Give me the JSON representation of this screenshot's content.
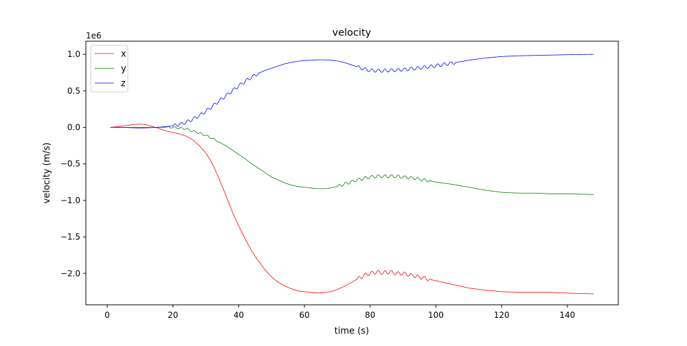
{
  "chart_data": {
    "type": "line",
    "title": "velocity",
    "xlabel": "time (s)",
    "ylabel": "velocity (m/s)",
    "offset_label": "1e6",
    "xlim": [
      -6.5,
      155.5
    ],
    "ylim": [
      -2.43,
      1.18
    ],
    "x_ticks": [
      0,
      20,
      40,
      60,
      80,
      100,
      120,
      140
    ],
    "x_tick_labels": [
      "0",
      "20",
      "40",
      "60",
      "80",
      "100",
      "120",
      "140"
    ],
    "y_ticks": [
      1.0,
      0.5,
      0.0,
      -0.5,
      -1.0,
      -1.5,
      -2.0
    ],
    "y_tick_labels": [
      "1.0",
      "0.5",
      "0.0",
      "−0.5",
      "−1.0",
      "−1.5",
      "−2.0"
    ],
    "grid": false,
    "legend_position": "upper left",
    "series": [
      {
        "name": "x",
        "color": "#ff0000",
        "x": [
          1,
          5,
          8,
          10,
          12,
          14,
          16,
          18,
          20,
          22,
          24,
          26,
          28,
          30,
          32,
          34,
          36,
          38,
          40,
          42,
          44,
          46,
          48,
          50,
          52,
          54,
          56,
          58,
          60,
          62,
          64,
          66,
          68,
          70,
          72,
          74,
          76,
          78,
          80,
          82,
          84,
          86,
          88,
          90,
          92,
          94,
          96,
          98,
          100,
          105,
          110,
          115,
          120,
          125,
          130,
          135,
          140,
          148
        ],
        "y": [
          0.0,
          0.02,
          0.04,
          0.045,
          0.035,
          0.01,
          -0.02,
          -0.05,
          -0.07,
          -0.09,
          -0.12,
          -0.17,
          -0.25,
          -0.35,
          -0.5,
          -0.7,
          -0.92,
          -1.15,
          -1.35,
          -1.53,
          -1.7,
          -1.83,
          -1.95,
          -2.05,
          -2.12,
          -2.17,
          -2.21,
          -2.24,
          -2.25,
          -2.26,
          -2.27,
          -2.26,
          -2.25,
          -2.22,
          -2.18,
          -2.13,
          -2.08,
          -2.03,
          -2.0,
          -1.98,
          -1.99,
          -1.98,
          -2.0,
          -2.0,
          -2.02,
          -2.04,
          -2.06,
          -2.08,
          -2.1,
          -2.15,
          -2.2,
          -2.23,
          -2.25,
          -2.26,
          -2.26,
          -2.26,
          -2.27,
          -2.28
        ],
        "ripple": [
          [
            76,
            98,
            0.025
          ]
        ]
      },
      {
        "name": "y",
        "color": "#008000",
        "x": [
          1,
          5,
          10,
          15,
          20,
          22,
          24,
          26,
          28,
          30,
          32,
          34,
          36,
          38,
          40,
          42,
          44,
          46,
          48,
          50,
          52,
          54,
          56,
          58,
          60,
          62,
          64,
          66,
          68,
          70,
          72,
          74,
          76,
          78,
          80,
          82,
          84,
          86,
          88,
          90,
          92,
          94,
          96,
          98,
          100,
          105,
          110,
          115,
          120,
          125,
          130,
          135,
          140,
          148
        ],
        "y": [
          0.0,
          0.0,
          0.0,
          0.0,
          0.0,
          -0.01,
          -0.02,
          -0.05,
          -0.08,
          -0.11,
          -0.15,
          -0.2,
          -0.25,
          -0.31,
          -0.37,
          -0.43,
          -0.5,
          -0.56,
          -0.62,
          -0.68,
          -0.72,
          -0.76,
          -0.79,
          -0.81,
          -0.82,
          -0.83,
          -0.84,
          -0.84,
          -0.83,
          -0.81,
          -0.78,
          -0.75,
          -0.72,
          -0.7,
          -0.68,
          -0.67,
          -0.67,
          -0.67,
          -0.67,
          -0.68,
          -0.69,
          -0.7,
          -0.72,
          -0.73,
          -0.75,
          -0.78,
          -0.82,
          -0.86,
          -0.89,
          -0.9,
          -0.9,
          -0.91,
          -0.91,
          -0.92
        ],
        "ripple": [
          [
            18,
            34,
            0.012
          ],
          [
            70,
            98,
            0.02
          ]
        ]
      },
      {
        "name": "z",
        "color": "#0000ff",
        "x": [
          1,
          5,
          10,
          15,
          20,
          22,
          24,
          26,
          28,
          30,
          32,
          34,
          36,
          38,
          40,
          42,
          44,
          46,
          48,
          50,
          52,
          54,
          56,
          58,
          60,
          62,
          64,
          66,
          68,
          70,
          72,
          74,
          76,
          78,
          80,
          82,
          84,
          86,
          88,
          90,
          92,
          94,
          96,
          98,
          100,
          105,
          110,
          115,
          120,
          125,
          130,
          135,
          140,
          148
        ],
        "y": [
          0.0,
          0.0,
          -0.01,
          0.0,
          0.02,
          0.04,
          0.07,
          0.11,
          0.16,
          0.22,
          0.29,
          0.36,
          0.43,
          0.5,
          0.57,
          0.63,
          0.69,
          0.74,
          0.78,
          0.81,
          0.84,
          0.87,
          0.89,
          0.905,
          0.915,
          0.92,
          0.925,
          0.925,
          0.92,
          0.91,
          0.89,
          0.86,
          0.83,
          0.8,
          0.78,
          0.775,
          0.775,
          0.78,
          0.785,
          0.79,
          0.8,
          0.81,
          0.82,
          0.83,
          0.845,
          0.88,
          0.92,
          0.95,
          0.97,
          0.98,
          0.985,
          0.99,
          0.995,
          1.0
        ],
        "ripple": [
          [
            20,
            46,
            0.022
          ],
          [
            76,
            106,
            0.022
          ]
        ]
      }
    ]
  }
}
